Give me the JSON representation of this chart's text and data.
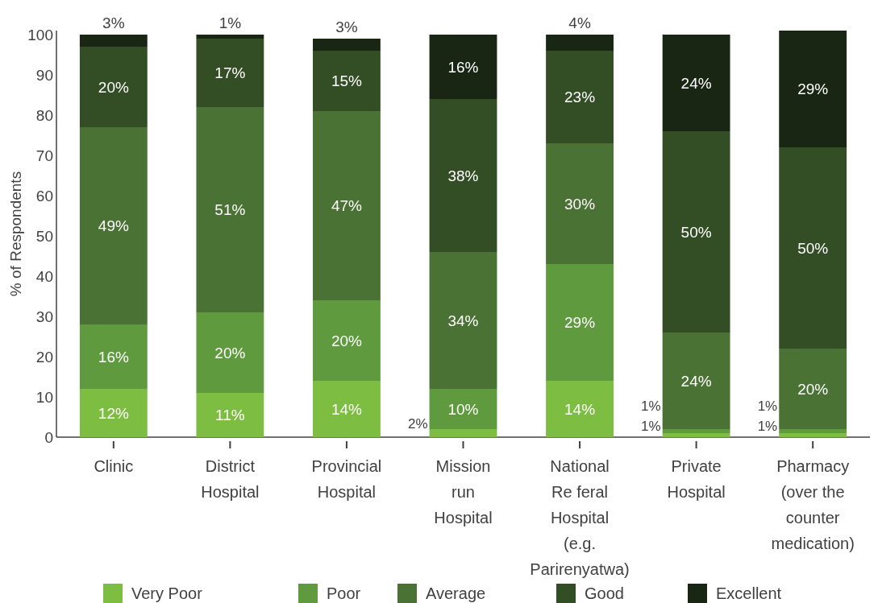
{
  "chart_data": {
    "type": "bar",
    "stacked": true,
    "ylabel": "% of Respondents",
    "categories": [
      "Clinic",
      "District Hospital",
      "Provincial Hospital",
      "Mission run Hospital",
      "National Re feral Hospital (e.g. Parirenyatwa)",
      "Private Hospital",
      "Pharmacy (over the counter medication)"
    ],
    "series": [
      {
        "name": "Very Poor",
        "color": "#7dbd42",
        "values": [
          12,
          11,
          14,
          2,
          14,
          1,
          1
        ],
        "value_labels": [
          "12%",
          "11%",
          "14%",
          "2%",
          "14%",
          "1%",
          "1%"
        ]
      },
      {
        "name": "Poor",
        "color": "#5f9a3e",
        "values": [
          16,
          20,
          20,
          10,
          29,
          1,
          1
        ],
        "value_labels": [
          "16%",
          "20%",
          "20%",
          "10%",
          "29%",
          "1%",
          "1%"
        ]
      },
      {
        "name": "Average",
        "color": "#4a7234",
        "values": [
          49,
          51,
          47,
          34,
          30,
          24,
          20
        ],
        "value_labels": [
          "49%",
          "51%",
          "47%",
          "34%",
          "30%",
          "24%",
          "20%"
        ]
      },
      {
        "name": "Good",
        "color": "#334d25",
        "values": [
          20,
          17,
          15,
          38,
          23,
          50,
          50
        ],
        "value_labels": [
          "20%",
          "17%",
          "15%",
          "38%",
          "23%",
          "50%",
          "50%"
        ]
      },
      {
        "name": "Excellent",
        "color": "#1a2614",
        "values": [
          3,
          1,
          3,
          16,
          4,
          24,
          29
        ],
        "value_labels": [
          "3%",
          "1%",
          "3%",
          "16%",
          "4%",
          "24%",
          "29%"
        ]
      }
    ],
    "ylim": [
      0,
      101
    ],
    "yticks": [
      0,
      10,
      20,
      30,
      40,
      50,
      60,
      70,
      80,
      90,
      100
    ],
    "grid": false,
    "legend": "bottom"
  }
}
